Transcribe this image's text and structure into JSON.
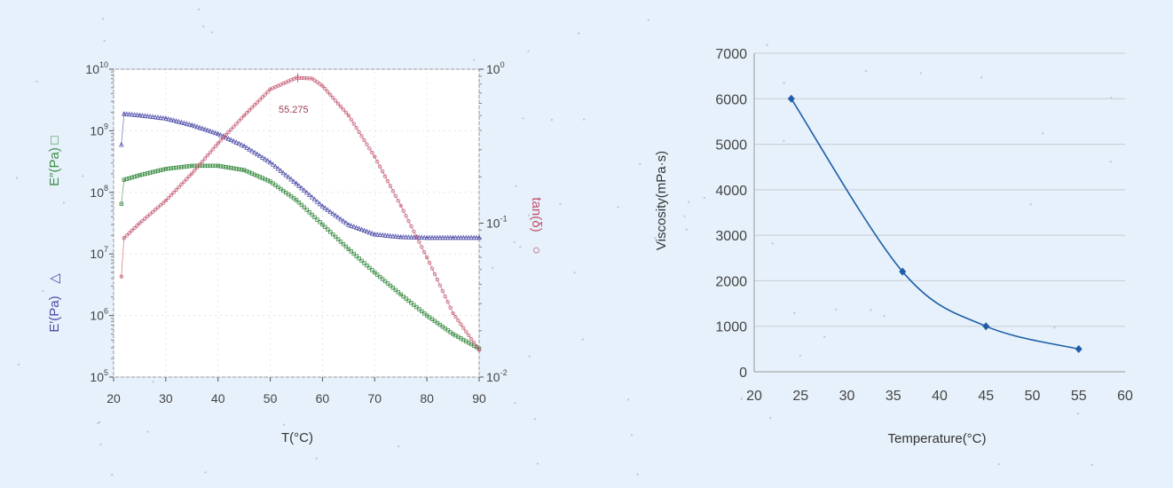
{
  "colors": {
    "background": "#e6f1fb",
    "storage_modulus": "#4a4aa8",
    "loss_modulus": "#3e8e46",
    "tan_delta": "#c0506a",
    "viscosity": "#1e5ea8",
    "grid": "#c8ccd2",
    "axis": "#555555",
    "tick_text": "#444444"
  },
  "chart_data": [
    {
      "type": "line",
      "xlabel": "T(°C)",
      "y_left_label_loss": "E″(Pa)",
      "y_left_label_loss_marker": "□",
      "y_left_label_storage": "E′(Pa)",
      "y_left_label_storage_marker": "△",
      "y_right_label": "tan(δ)",
      "y_right_label_marker": "○",
      "xlim": [
        20,
        90
      ],
      "xticks": [
        20,
        30,
        40,
        50,
        60,
        70,
        80,
        90
      ],
      "y_left_scale": "log",
      "y_left_lim": [
        100000,
        10000000000
      ],
      "y_left_ticks": [
        {
          "base": "10",
          "exp": "5",
          "value": 100000
        },
        {
          "base": "10",
          "exp": "6",
          "value": 1000000
        },
        {
          "base": "10",
          "exp": "7",
          "value": 10000000
        },
        {
          "base": "10",
          "exp": "8",
          "value": 100000000
        },
        {
          "base": "10",
          "exp": "9",
          "value": 1000000000
        },
        {
          "base": "10",
          "exp": "10",
          "value": 10000000000
        }
      ],
      "y_right_scale": "log",
      "y_right_lim": [
        0.01,
        1
      ],
      "y_right_ticks": [
        {
          "base": "10",
          "exp": "-2",
          "value": 0.01
        },
        {
          "base": "10",
          "exp": "-1",
          "value": 0.1
        },
        {
          "base": "10",
          "exp": "0",
          "value": 1
        }
      ],
      "annotation": {
        "text": "55.275",
        "x": 55.275,
        "y": 0.88
      },
      "series": [
        {
          "id": "storage_modulus",
          "axis": "left",
          "marker": "triangle",
          "x": [
            21.5,
            22,
            25,
            30,
            35,
            40,
            45,
            50,
            55,
            60,
            65,
            70,
            75,
            80,
            85,
            90
          ],
          "y": [
            600000000,
            1900000000,
            1800000000,
            1600000000,
            1250000000,
            900000000,
            570000000,
            310000000,
            140000000,
            60000000,
            30000000,
            21000000,
            19000000,
            18500000,
            18500000,
            18500000
          ]
        },
        {
          "id": "loss_modulus",
          "axis": "left",
          "marker": "square",
          "x": [
            21.5,
            22,
            25,
            30,
            35,
            40,
            45,
            50,
            55,
            60,
            65,
            70,
            75,
            80,
            85,
            90
          ],
          "y": [
            65000000,
            160000000,
            190000000,
            240000000,
            270000000,
            270000000,
            230000000,
            150000000,
            75000000,
            30000000,
            12000000,
            5000000,
            2200000,
            1000000,
            500000,
            290000
          ]
        },
        {
          "id": "tan_delta",
          "axis": "right",
          "marker": "circle",
          "x": [
            21.5,
            22,
            25,
            30,
            35,
            40,
            45,
            50,
            55,
            58,
            60,
            65,
            70,
            75,
            80,
            85,
            90
          ],
          "y": [
            0.045,
            0.08,
            0.1,
            0.14,
            0.21,
            0.33,
            0.5,
            0.74,
            0.88,
            0.87,
            0.78,
            0.5,
            0.27,
            0.13,
            0.06,
            0.026,
            0.015
          ]
        }
      ]
    },
    {
      "type": "line",
      "xlabel": "Temperature(°C)",
      "ylabel": "Viscosity(mPa·s)",
      "xlim": [
        20,
        60
      ],
      "xticks": [
        20,
        25,
        30,
        35,
        40,
        45,
        50,
        55,
        60
      ],
      "ylim": [
        0,
        7000
      ],
      "yticks": [
        0,
        1000,
        2000,
        3000,
        4000,
        5000,
        6000,
        7000
      ],
      "grid": "horizontal",
      "series": [
        {
          "id": "viscosity",
          "marker": "diamond",
          "x": [
            24,
            36,
            45,
            55
          ],
          "y": [
            6000,
            2200,
            1000,
            500
          ]
        }
      ]
    }
  ]
}
